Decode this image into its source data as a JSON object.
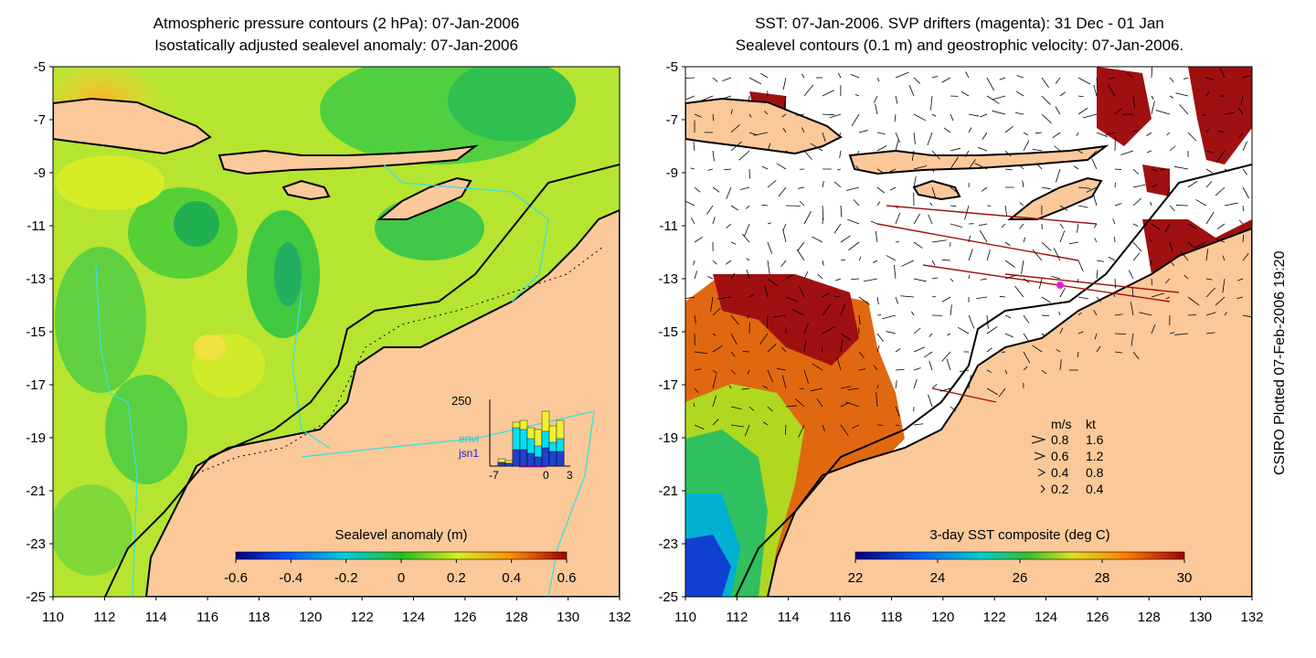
{
  "left_panel": {
    "title_line1": "Atmospheric pressure contours (2 hPa): 07-Jan-2006",
    "title_line2": "Isostatically adjusted sealevel anomaly: 07-Jan-2006",
    "colorbar_label": "Sealevel anomaly (m)",
    "colorbar_ticks": [
      "-0.6",
      "-0.4",
      "-0.2",
      "0",
      "0.2",
      "0.4",
      "0.6"
    ],
    "inset": {
      "y_tick": "250",
      "legend": [
        {
          "label": "",
          "color": "#e6e600"
        },
        {
          "label": "envi",
          "color": "#00d0e0"
        },
        {
          "label": "jsn1",
          "color": "#2020d0"
        }
      ],
      "x_ticks": [
        "-7",
        "0",
        "3"
      ]
    }
  },
  "right_panel": {
    "title_line1": "SST: 07-Jan-2006. SVP drifters (magenta): 31 Dec - 01 Jan",
    "title_line2": "Sealevel contours (0.1 m) and geostrophic velocity: 07-Jan-2006.",
    "colorbar_label": "3-day SST composite (deg C)",
    "colorbar_ticks": [
      "22",
      "24",
      "26",
      "28",
      "30"
    ],
    "velocity_legend": {
      "header_ms": "m/s",
      "header_kt": "kt",
      "rows": [
        {
          "ms": "0.8",
          "kt": "1.6"
        },
        {
          "ms": "0.6",
          "kt": "1.2"
        },
        {
          "ms": "0.4",
          "kt": "0.8"
        },
        {
          "ms": "0.2",
          "kt": "0.4"
        }
      ]
    }
  },
  "axes": {
    "y_ticks": [
      "-5",
      "-7",
      "-9",
      "-11",
      "-13",
      "-15",
      "-17",
      "-19",
      "-21",
      "-23",
      "-25"
    ],
    "x_ticks": [
      "110",
      "112",
      "114",
      "116",
      "118",
      "120",
      "122",
      "124",
      "126",
      "128",
      "130",
      "132"
    ]
  },
  "sidebar_text": "CSIRO Plotted 07-Feb-2006 19:20",
  "colors": {
    "land": "#fbc89a",
    "sea_green": "#7fdc2e",
    "sea_yellow": "#d8ee20",
    "sst_hot": "#a01010",
    "coast": "#000000"
  }
}
